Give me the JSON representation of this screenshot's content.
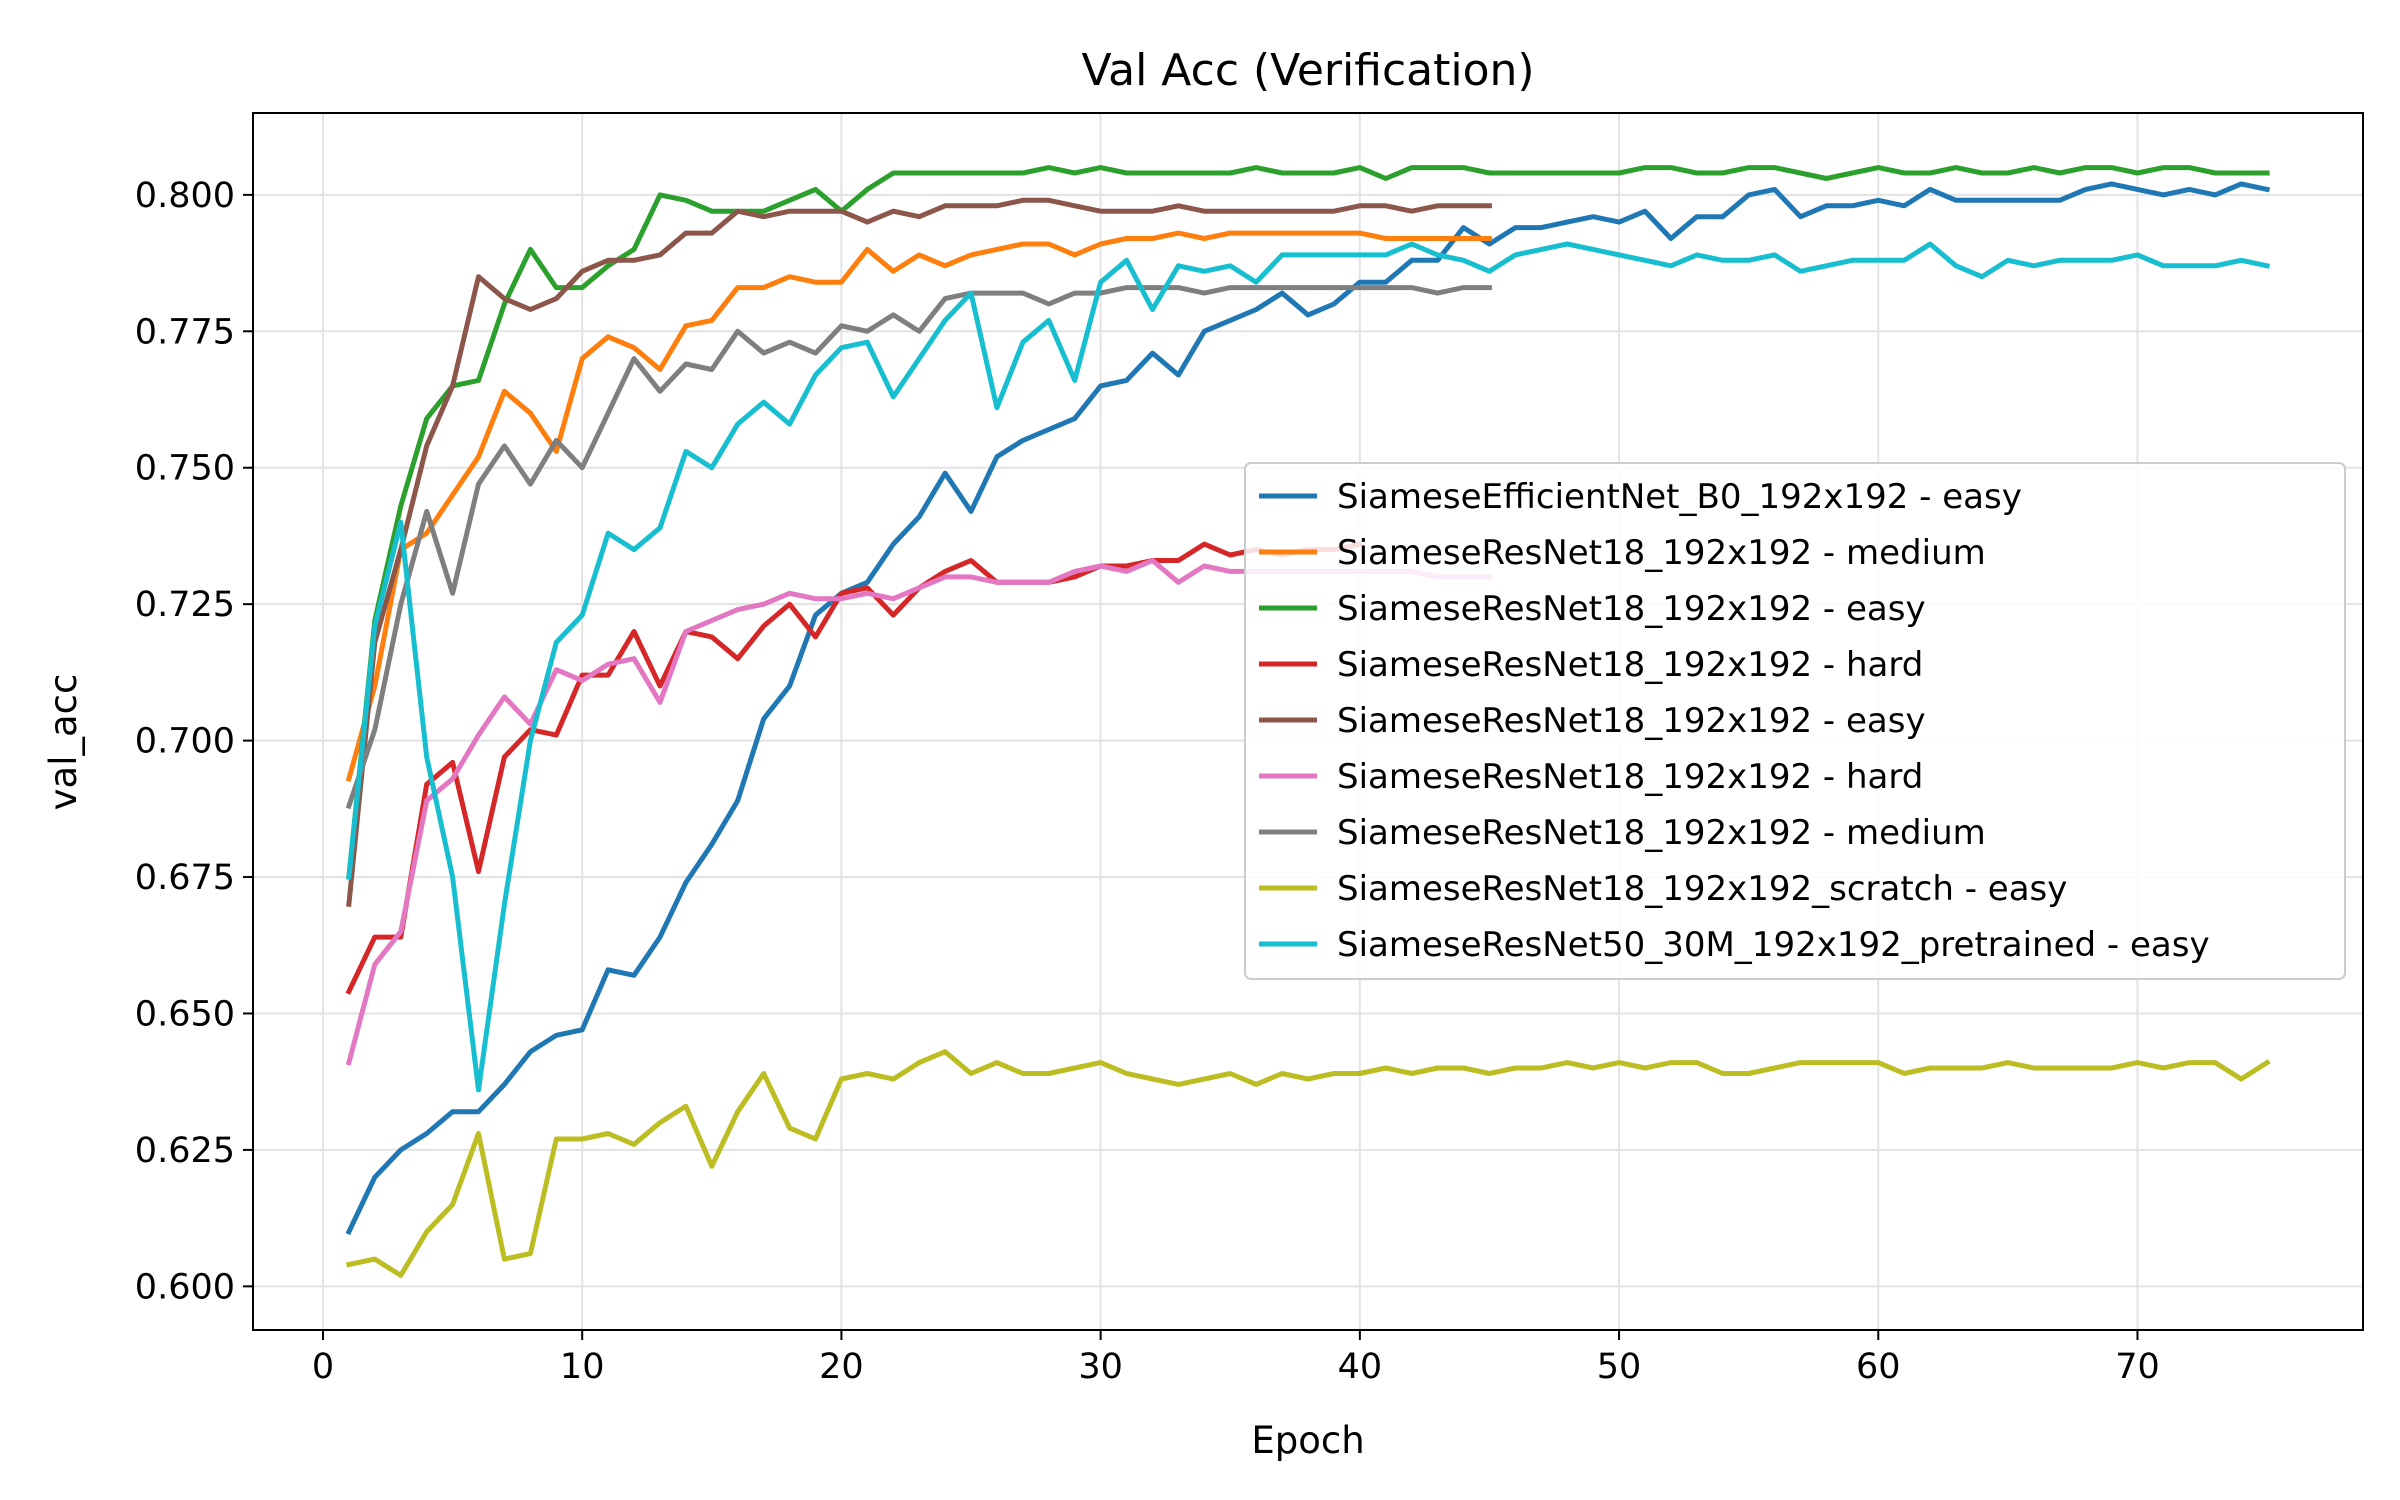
{
  "chart_data": {
    "type": "line",
    "title": "Val Acc (Verification)",
    "xlabel": "Epoch",
    "ylabel": "val_acc",
    "xlim": [
      -2.7,
      78.7
    ],
    "ylim": [
      0.592,
      0.815
    ],
    "xticks": [
      0,
      10,
      20,
      30,
      40,
      50,
      60,
      70
    ],
    "yticks": [
      0.6,
      0.625,
      0.65,
      0.675,
      0.7,
      0.725,
      0.75,
      0.775,
      0.8
    ],
    "ytick_labels": [
      "0.600",
      "0.625",
      "0.650",
      "0.675",
      "0.700",
      "0.725",
      "0.750",
      "0.775",
      "0.800"
    ],
    "grid": true,
    "legend_position": "center-right",
    "series": [
      {
        "name": "SiameseEfficientNet_B0_192x192 - easy",
        "color": "#1f77b4",
        "x_start": 1,
        "values": [
          0.61,
          0.62,
          0.625,
          0.628,
          0.632,
          0.632,
          0.637,
          0.643,
          0.646,
          0.647,
          0.658,
          0.657,
          0.664,
          0.674,
          0.681,
          0.689,
          0.704,
          0.71,
          0.723,
          0.727,
          0.729,
          0.736,
          0.741,
          0.749,
          0.742,
          0.752,
          0.755,
          0.757,
          0.759,
          0.765,
          0.766,
          0.771,
          0.767,
          0.775,
          0.777,
          0.779,
          0.782,
          0.778,
          0.78,
          0.784,
          0.784,
          0.788,
          0.788,
          0.794,
          0.791,
          0.794,
          0.794,
          0.795,
          0.796,
          0.795,
          0.797,
          0.792,
          0.796,
          0.796,
          0.8,
          0.801,
          0.796,
          0.798,
          0.798,
          0.799,
          0.798,
          0.801,
          0.799,
          0.799,
          0.799,
          0.799,
          0.799,
          0.801,
          0.802,
          0.801,
          0.8,
          0.801,
          0.8,
          0.802,
          0.801
        ]
      },
      {
        "name": "SiameseResNet18_192x192 - medium",
        "color": "#ff7f0e",
        "x_start": 1,
        "values": [
          0.693,
          0.71,
          0.735,
          0.738,
          0.745,
          0.752,
          0.764,
          0.76,
          0.753,
          0.77,
          0.774,
          0.772,
          0.768,
          0.776,
          0.777,
          0.783,
          0.783,
          0.785,
          0.784,
          0.784,
          0.79,
          0.786,
          0.789,
          0.787,
          0.789,
          0.79,
          0.791,
          0.791,
          0.789,
          0.791,
          0.792,
          0.792,
          0.793,
          0.792,
          0.793,
          0.793,
          0.793,
          0.793,
          0.793,
          0.793,
          0.792,
          0.792,
          0.792,
          0.792,
          0.792
        ]
      },
      {
        "name": "SiameseResNet18_192x192 - easy",
        "color": "#2ca02c",
        "x_start": 1,
        "values": [
          0.675,
          0.722,
          0.743,
          0.759,
          0.765,
          0.766,
          0.78,
          0.79,
          0.783,
          0.783,
          0.787,
          0.79,
          0.8,
          0.799,
          0.797,
          0.797,
          0.797,
          0.799,
          0.801,
          0.797,
          0.801,
          0.804,
          0.804,
          0.804,
          0.804,
          0.804,
          0.804,
          0.805,
          0.804,
          0.805,
          0.804,
          0.804,
          0.804,
          0.804,
          0.804,
          0.805,
          0.804,
          0.804,
          0.804,
          0.805,
          0.803,
          0.805,
          0.805,
          0.805,
          0.804,
          0.804,
          0.804,
          0.804,
          0.804,
          0.804,
          0.805,
          0.805,
          0.804,
          0.804,
          0.805,
          0.805,
          0.804,
          0.803,
          0.804,
          0.805,
          0.804,
          0.804,
          0.805,
          0.804,
          0.804,
          0.805,
          0.804,
          0.805,
          0.805,
          0.804,
          0.805,
          0.805,
          0.804,
          0.804,
          0.804
        ]
      },
      {
        "name": "SiameseResNet18_192x192 - hard",
        "color": "#d62728",
        "x_start": 1,
        "values": [
          0.654,
          0.664,
          0.664,
          0.692,
          0.696,
          0.676,
          0.697,
          0.702,
          0.701,
          0.712,
          0.712,
          0.72,
          0.71,
          0.72,
          0.719,
          0.715,
          0.721,
          0.725,
          0.719,
          0.727,
          0.728,
          0.723,
          0.728,
          0.731,
          0.733,
          0.729,
          0.729,
          0.729,
          0.73,
          0.732,
          0.732,
          0.733,
          0.733,
          0.736,
          0.734,
          0.735,
          0.734,
          0.735,
          0.735,
          0.736
        ]
      },
      {
        "name": "SiameseResNet18_192x192 - easy",
        "color": "#8c564b",
        "x_start": 1,
        "values": [
          0.67,
          0.718,
          0.735,
          0.754,
          0.765,
          0.785,
          0.781,
          0.779,
          0.781,
          0.786,
          0.788,
          0.788,
          0.789,
          0.793,
          0.793,
          0.797,
          0.796,
          0.797,
          0.797,
          0.797,
          0.795,
          0.797,
          0.796,
          0.798,
          0.798,
          0.798,
          0.799,
          0.799,
          0.798,
          0.797,
          0.797,
          0.797,
          0.798,
          0.797,
          0.797,
          0.797,
          0.797,
          0.797,
          0.797,
          0.798,
          0.798,
          0.797,
          0.798,
          0.798,
          0.798
        ]
      },
      {
        "name": "SiameseResNet18_192x192 - hard",
        "color": "#e377c2",
        "x_start": 1,
        "values": [
          0.641,
          0.659,
          0.665,
          0.689,
          0.693,
          0.701,
          0.708,
          0.703,
          0.713,
          0.711,
          0.714,
          0.715,
          0.707,
          0.72,
          0.722,
          0.724,
          0.725,
          0.727,
          0.726,
          0.726,
          0.727,
          0.726,
          0.728,
          0.73,
          0.73,
          0.729,
          0.729,
          0.729,
          0.731,
          0.732,
          0.731,
          0.733,
          0.729,
          0.732,
          0.731,
          0.731,
          0.731,
          0.731,
          0.731,
          0.731,
          0.731,
          0.731,
          0.73,
          0.73,
          0.73
        ]
      },
      {
        "name": "SiameseResNet18_192x192 - medium",
        "color": "#7f7f7f",
        "x_start": 1,
        "values": [
          0.688,
          0.702,
          0.725,
          0.742,
          0.727,
          0.747,
          0.754,
          0.747,
          0.755,
          0.75,
          0.76,
          0.77,
          0.764,
          0.769,
          0.768,
          0.775,
          0.771,
          0.773,
          0.771,
          0.776,
          0.775,
          0.778,
          0.775,
          0.781,
          0.782,
          0.782,
          0.782,
          0.78,
          0.782,
          0.782,
          0.783,
          0.783,
          0.783,
          0.782,
          0.783,
          0.783,
          0.783,
          0.783,
          0.783,
          0.783,
          0.783,
          0.783,
          0.782,
          0.783,
          0.783
        ]
      },
      {
        "name": "SiameseResNet18_192x192_scratch - easy",
        "color": "#bcbd22",
        "x_start": 1,
        "values": [
          0.604,
          0.605,
          0.602,
          0.61,
          0.615,
          0.628,
          0.605,
          0.606,
          0.627,
          0.627,
          0.628,
          0.626,
          0.63,
          0.633,
          0.622,
          0.632,
          0.639,
          0.629,
          0.627,
          0.638,
          0.639,
          0.638,
          0.641,
          0.643,
          0.639,
          0.641,
          0.639,
          0.639,
          0.64,
          0.641,
          0.639,
          0.638,
          0.637,
          0.638,
          0.639,
          0.637,
          0.639,
          0.638,
          0.639,
          0.639,
          0.64,
          0.639,
          0.64,
          0.64,
          0.639,
          0.64,
          0.64,
          0.641,
          0.64,
          0.641,
          0.64,
          0.641,
          0.641,
          0.639,
          0.639,
          0.64,
          0.641,
          0.641,
          0.641,
          0.641,
          0.639,
          0.64,
          0.64,
          0.64,
          0.641,
          0.64,
          0.64,
          0.64,
          0.64,
          0.641,
          0.64,
          0.641,
          0.641,
          0.638,
          0.641
        ]
      },
      {
        "name": "SiameseResNet50_30M_192x192_pretrained - easy",
        "color": "#17becf",
        "x_start": 1,
        "values": [
          0.675,
          0.721,
          0.74,
          0.697,
          0.675,
          0.636,
          0.67,
          0.7,
          0.718,
          0.723,
          0.738,
          0.735,
          0.739,
          0.753,
          0.75,
          0.758,
          0.762,
          0.758,
          0.767,
          0.772,
          0.773,
          0.763,
          0.77,
          0.777,
          0.782,
          0.761,
          0.773,
          0.777,
          0.766,
          0.784,
          0.788,
          0.779,
          0.787,
          0.786,
          0.787,
          0.784,
          0.789,
          0.789,
          0.789,
          0.789,
          0.789,
          0.791,
          0.789,
          0.788,
          0.786,
          0.789,
          0.79,
          0.791,
          0.79,
          0.789,
          0.788,
          0.787,
          0.789,
          0.788,
          0.788,
          0.789,
          0.786,
          0.787,
          0.788,
          0.788,
          0.788,
          0.791,
          0.787,
          0.785,
          0.788,
          0.787,
          0.788,
          0.788,
          0.788,
          0.789,
          0.787,
          0.787,
          0.787,
          0.788,
          0.787
        ]
      }
    ]
  }
}
